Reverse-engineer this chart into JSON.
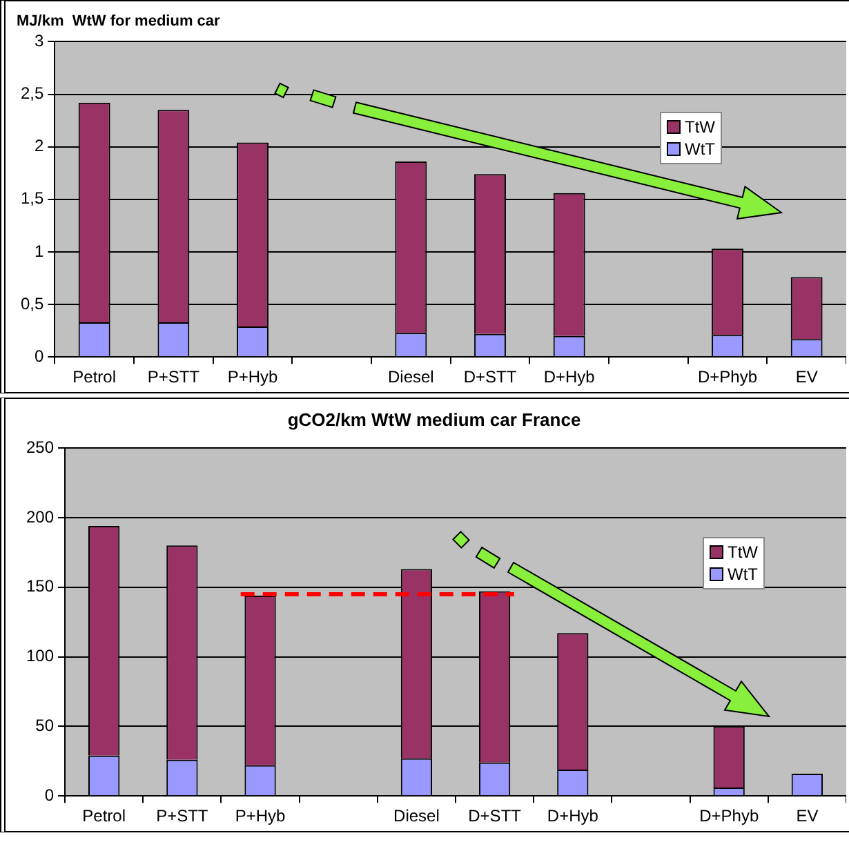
{
  "chart_data": [
    {
      "type": "bar",
      "title": "MJ/km  WtW for medium car",
      "stacked": true,
      "categories": [
        "Petrol",
        "P+STT",
        "P+Hyb",
        null,
        "Diesel",
        "D+STT",
        "D+Hyb",
        null,
        "D+Phyb",
        "EV"
      ],
      "series": [
        {
          "name": "WtT",
          "color": "#9999ff",
          "values": [
            0.33,
            0.33,
            0.29,
            null,
            0.23,
            0.22,
            0.2,
            null,
            0.21,
            0.17
          ]
        },
        {
          "name": "TtW",
          "color": "#993366",
          "values": [
            2.09,
            2.02,
            1.75,
            null,
            1.63,
            1.52,
            1.36,
            null,
            0.82,
            0.59
          ]
        }
      ],
      "ylim": [
        0,
        3
      ],
      "yticks": [
        0,
        {
          "value": 0.5,
          "label": "0,5"
        },
        1,
        {
          "value": 1.5,
          "label": "1,5"
        },
        2,
        {
          "value": 2.5,
          "label": "2,5"
        },
        3
      ],
      "grid": "y",
      "legend": "top right"
    },
    {
      "type": "bar",
      "title": "gCO2/km WtW medium car France",
      "stacked": true,
      "categories": [
        "Petrol",
        "P+STT",
        "P+Hyb",
        null,
        "Diesel",
        "D+STT",
        "D+Hyb",
        null,
        "D+Phyb",
        "EV"
      ],
      "series": [
        {
          "name": "WtT",
          "color": "#9999ff",
          "values": [
            29,
            26,
            22,
            null,
            27,
            24,
            19,
            null,
            6,
            16
          ]
        },
        {
          "name": "TtW",
          "color": "#993366",
          "values": [
            165,
            154,
            122,
            null,
            136,
            123,
            98,
            null,
            44,
            null
          ]
        }
      ],
      "ylim": [
        0,
        250
      ],
      "yticks": [
        0,
        50,
        100,
        150,
        200,
        250
      ],
      "ref_lines": [
        {
          "axis": "y",
          "value": 145,
          "color": "#ff0000",
          "line_style": "dashed"
        }
      ],
      "grid": "y",
      "legend": "top right"
    }
  ]
}
